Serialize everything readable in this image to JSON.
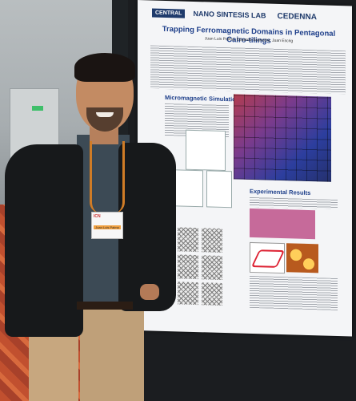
{
  "poster": {
    "sponsors": [
      "CENTRAL",
      "NANO SINTESIS LAB",
      "CEDENNA"
    ],
    "title": "Trapping Ferromagnetic Domains in Pentagonal Cairo-tilings",
    "authors": "Juan Luis Palma, Eduardo Saavedra, Juan Escrig",
    "sections": [
      "Micromagnetic Simulations",
      "Experimental Results"
    ]
  },
  "badge": {
    "org": "ICN",
    "name": "Juan Luis Palma"
  }
}
